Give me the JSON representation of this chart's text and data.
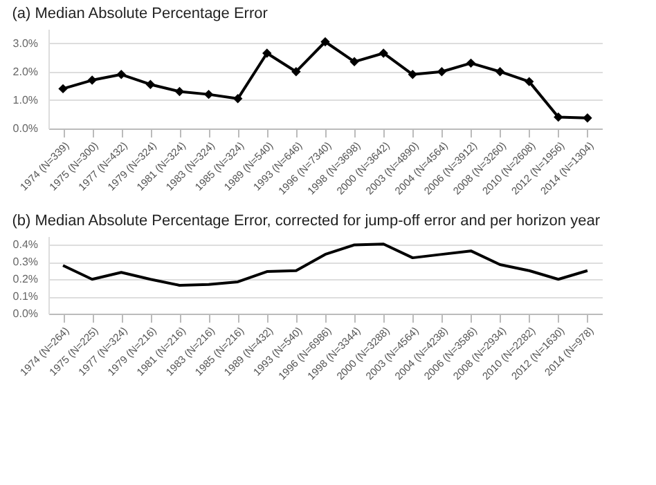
{
  "chart_data": [
    {
      "type": "line",
      "title": "(a) Median Absolute Percentage Error",
      "categories": [
        "1974  (N=339)",
        "1975  (N=300)",
        "1977  (N=432)",
        "1979  (N=324)",
        "1981  (N=324)",
        "1983  (N=324)",
        "1985  (N=324)",
        "1989  (N=540)",
        "1993  (N=646)",
        "1996  (N=7340)",
        "1998  (N=3698)",
        "2000  (N=3642)",
        "2003  (N=4890)",
        "2004  (N=4564)",
        "2006  (N=3912)",
        "2008  (N=3260)",
        "2010  (N=2608)",
        "2012  (N=1956)",
        "2014  (N=1304)"
      ],
      "series": [
        {
          "color": "#000000",
          "values": [
            1.4,
            1.7,
            1.9,
            1.55,
            1.3,
            1.2,
            1.05,
            2.65,
            2.0,
            3.05,
            2.35,
            2.65,
            1.9,
            2.0,
            2.3,
            2.0,
            1.65,
            0.4,
            0.37
          ]
        }
      ],
      "ylim": [
        0,
        3.5
      ],
      "yticks": [
        {
          "value": 0,
          "label": "0.0%"
        },
        {
          "value": 1,
          "label": "1.0%"
        },
        {
          "value": 2,
          "label": "2.0%"
        },
        {
          "value": 3,
          "label": "3.0%"
        }
      ],
      "grid": "y",
      "marker": "diamond",
      "line_style": "solid"
    },
    {
      "type": "line",
      "title": "(b) Median Absolute Percentage Error, corrected for jump-off error and per horizon year",
      "categories": [
        "1974  (N=264)",
        "1975  (N=225)",
        "1977  (N=324)",
        "1979  (N=216)",
        "1981  (N=216)",
        "1983  (N=216)",
        "1985  (N=216)",
        "1989  (N=432)",
        "1993  (N=540)",
        "1996  (N=6986)",
        "1998  (N=3344)",
        "2000  (N=3288)",
        "2003  (N=4564)",
        "2004  (N=4238)",
        "2006  (N=3586)",
        "2008  (N=2934)",
        "2010  (N=2282)",
        "2012  (N=1630)",
        "2014  (N=978)"
      ],
      "series": [
        {
          "color": "#000000",
          "values": [
            0.28,
            0.2,
            0.24,
            0.2,
            0.165,
            0.17,
            0.185,
            0.245,
            0.25,
            0.345,
            0.4,
            0.405,
            0.325,
            0.345,
            0.365,
            0.285,
            0.25,
            0.2,
            0.25
          ]
        }
      ],
      "ylim": [
        0,
        0.45
      ],
      "yticks": [
        {
          "value": 0,
          "label": "0.0%"
        },
        {
          "value": 0.1,
          "label": "0.1%"
        },
        {
          "value": 0.2,
          "label": "0.2%"
        },
        {
          "value": 0.3,
          "label": "0.3%"
        },
        {
          "value": 0.4,
          "label": "0.4%"
        }
      ],
      "grid": "y",
      "line_style": "solid"
    }
  ]
}
